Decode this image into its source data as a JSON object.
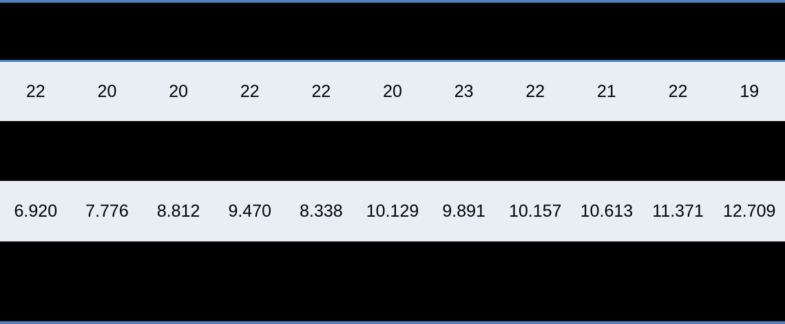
{
  "table": {
    "column_count": 11,
    "rows": [
      {
        "name": "integer-row",
        "values": [
          "22",
          "20",
          "20",
          "22",
          "22",
          "20",
          "23",
          "22",
          "21",
          "22",
          "19"
        ]
      },
      {
        "name": "decimal-row",
        "values": [
          "6.920",
          "7.776",
          "8.812",
          "9.470",
          "8.338",
          "10.129",
          "9.891",
          "10.157",
          "10.613",
          "11.371",
          "12.709"
        ]
      }
    ]
  },
  "colors": {
    "border_blue": "#4e80bd",
    "band_light": "#e9edf4",
    "band_black": "#000000",
    "text": "#000000"
  },
  "chart_data": {
    "type": "table",
    "columns": 11,
    "rows": [
      [
        "22",
        "20",
        "20",
        "22",
        "22",
        "20",
        "23",
        "22",
        "21",
        "22",
        "19"
      ],
      [
        "6.920",
        "7.776",
        "8.812",
        "9.470",
        "8.338",
        "10.129",
        "9.891",
        "10.157",
        "10.613",
        "11.371",
        "12.709"
      ]
    ],
    "layout_hints": {
      "banding": "alternating black bands and light rows",
      "top_border": "blue",
      "bottom_border": "blue",
      "header_separator": "blue rule under first black band"
    }
  }
}
